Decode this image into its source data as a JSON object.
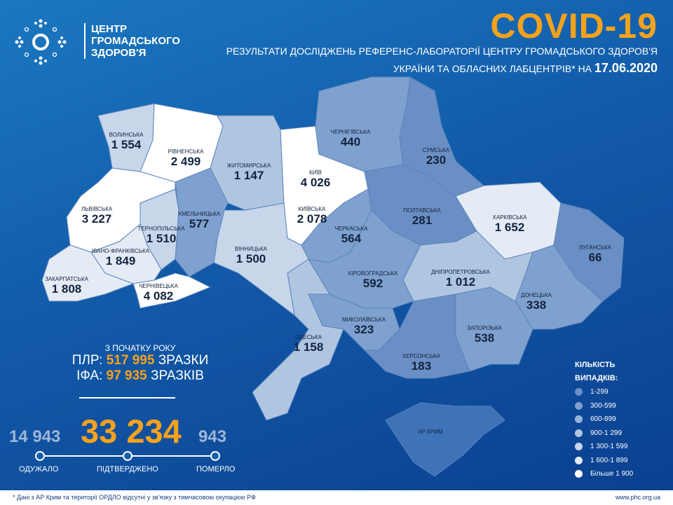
{
  "header": {
    "logo_lines": [
      "ЦЕНТР",
      "ГРОМАДСЬКОГО",
      "ЗДОРОВ'Я"
    ],
    "title": "COVID-19",
    "subtitle_line1": "РЕЗУЛЬТАТИ ДОСЛІДЖЕНЬ РЕФЕРЕНС-ЛАБОРАТОРІЇ ЦЕНТРУ ГРОМАДСЬКОГО ЗДОРОВ'Я",
    "subtitle_line2": "УКРАЇНИ ТА ОБЛАСНИХ ЛАБЦЕНТРІВ* НА",
    "date": "17.06.2020"
  },
  "colors": {
    "accent": "#f7a21b",
    "bg": "#125aa8",
    "scale": [
      "#6a8fc4",
      "#7fa1cf",
      "#97b3d9",
      "#b0c6e0",
      "#c8d6ea",
      "#e4ebf5",
      "#ffffff"
    ]
  },
  "regions": [
    {
      "name": "ВОЛИНСЬКА",
      "value": "1 554",
      "level": 4
    },
    {
      "name": "РІВНЕНСЬКА",
      "value": "2 499",
      "level": 6
    },
    {
      "name": "ЖИТОМИРСЬКА",
      "value": "1 147",
      "level": 3
    },
    {
      "name": "КИЇВ",
      "value": "4 026",
      "level": 6
    },
    {
      "name": "КИЇВСЬКА",
      "value": "2 078",
      "level": 6
    },
    {
      "name": "ЧЕРНІГІВСЬКА",
      "value": "440",
      "level": 1
    },
    {
      "name": "СУМСЬКА",
      "value": "230",
      "level": 0
    },
    {
      "name": "ПОЛТАВСЬКА",
      "value": "281",
      "level": 0
    },
    {
      "name": "ХАРКІВСЬКА",
      "value": "1 652",
      "level": 5
    },
    {
      "name": "ЛУГАНСЬКА",
      "value": "66",
      "level": 0
    },
    {
      "name": "ДОНЕЦЬКА",
      "value": "338",
      "level": 1
    },
    {
      "name": "ЗАПОРІЗЬКА",
      "value": "538",
      "level": 1
    },
    {
      "name": "ХЕРСОНСЬКА",
      "value": "183",
      "level": 0
    },
    {
      "name": "МИКОЛАЇВСЬКА",
      "value": "323",
      "level": 1
    },
    {
      "name": "ОДЕСЬКА",
      "value": "1 158",
      "level": 3
    },
    {
      "name": "КІРОВОГРАДСЬКА",
      "value": "592",
      "level": 1
    },
    {
      "name": "ДНІПРОПЕТРОВСЬКА",
      "value": "1 012",
      "level": 3
    },
    {
      "name": "ЧЕРКАСЬКА",
      "value": "564",
      "level": 1
    },
    {
      "name": "ВІННИЦЬКА",
      "value": "1 500",
      "level": 4
    },
    {
      "name": "ХМЕЛЬНИЦЬКА",
      "value": "577",
      "level": 1
    },
    {
      "name": "ТЕРНОПІЛЬСЬКА",
      "value": "1 510",
      "level": 4
    },
    {
      "name": "ЛЬВІВСЬКА",
      "value": "3 227",
      "level": 6
    },
    {
      "name": "ЗАКАРПАТСЬКА",
      "value": "1 808",
      "level": 5
    },
    {
      "name": "ІВАНО-ФРАНКІВСЬКА",
      "value": "1 849",
      "level": 5
    },
    {
      "name": "ЧЕРНІВЕЦЬКА",
      "value": "4 082",
      "level": 6
    },
    {
      "name": "АР КРИМ",
      "value": "",
      "level": -1
    }
  ],
  "stats": {
    "since": "З ПОЧАТКУ РОКУ",
    "pcr_label": "ПЛР:",
    "pcr_value": "517 995",
    "pcr_unit": "ЗРАЗКИ",
    "ifa_label": "ІФА:",
    "ifa_value": "97 935",
    "ifa_unit": "ЗРАЗКІВ",
    "recovered": "14 943",
    "confirmed": "33 234",
    "deaths": "943",
    "recovered_label": "ОДУЖАЛО",
    "confirmed_label": "ПІДТВЕРДЖЕНО",
    "deaths_label": "ПОМЕРЛО"
  },
  "legend": {
    "title1": "КІЛЬКІСТЬ",
    "title2": "ВИПАДКІВ:",
    "items": [
      "1-299",
      "300-599",
      "600-899",
      "900-1 299",
      "1 300-1 599",
      "1 600-1 899",
      "Більше 1 900"
    ]
  },
  "footer": {
    "note": "* Дані з АР Крим та території ОРДЛО відсутні у зв'язку з тимчасовою окупацією РФ",
    "url": "www.phc.org.ua"
  }
}
